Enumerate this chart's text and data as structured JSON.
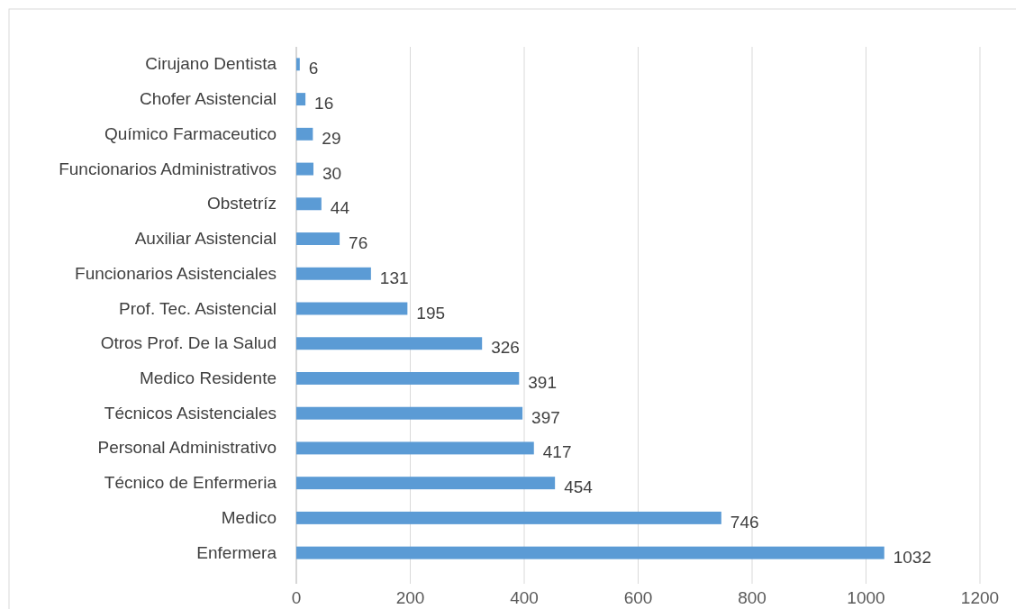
{
  "chart_data": {
    "type": "bar",
    "orientation": "horizontal",
    "categories": [
      "Cirujano Dentista",
      "Chofer Asistencial",
      "Químico Farmaceutico",
      "Funcionarios Administrativos",
      "Obstetríz",
      "Auxiliar Asistencial",
      "Funcionarios Asistenciales",
      "Prof. Tec. Asistencial",
      "Otros Prof. De la Salud",
      "Medico Residente",
      "Técnicos Asistenciales",
      "Personal Administrativo",
      "Técnico de Enfermeria",
      "Medico",
      "Enfermera"
    ],
    "values": [
      6,
      16,
      29,
      30,
      44,
      76,
      131,
      195,
      326,
      391,
      397,
      417,
      454,
      746,
      1032
    ],
    "color": "#5b9bd5",
    "xlim": [
      0,
      1200
    ],
    "xticks": [
      0,
      200,
      400,
      600,
      800,
      1000,
      1200
    ],
    "grid": "x",
    "data_labels": true
  }
}
